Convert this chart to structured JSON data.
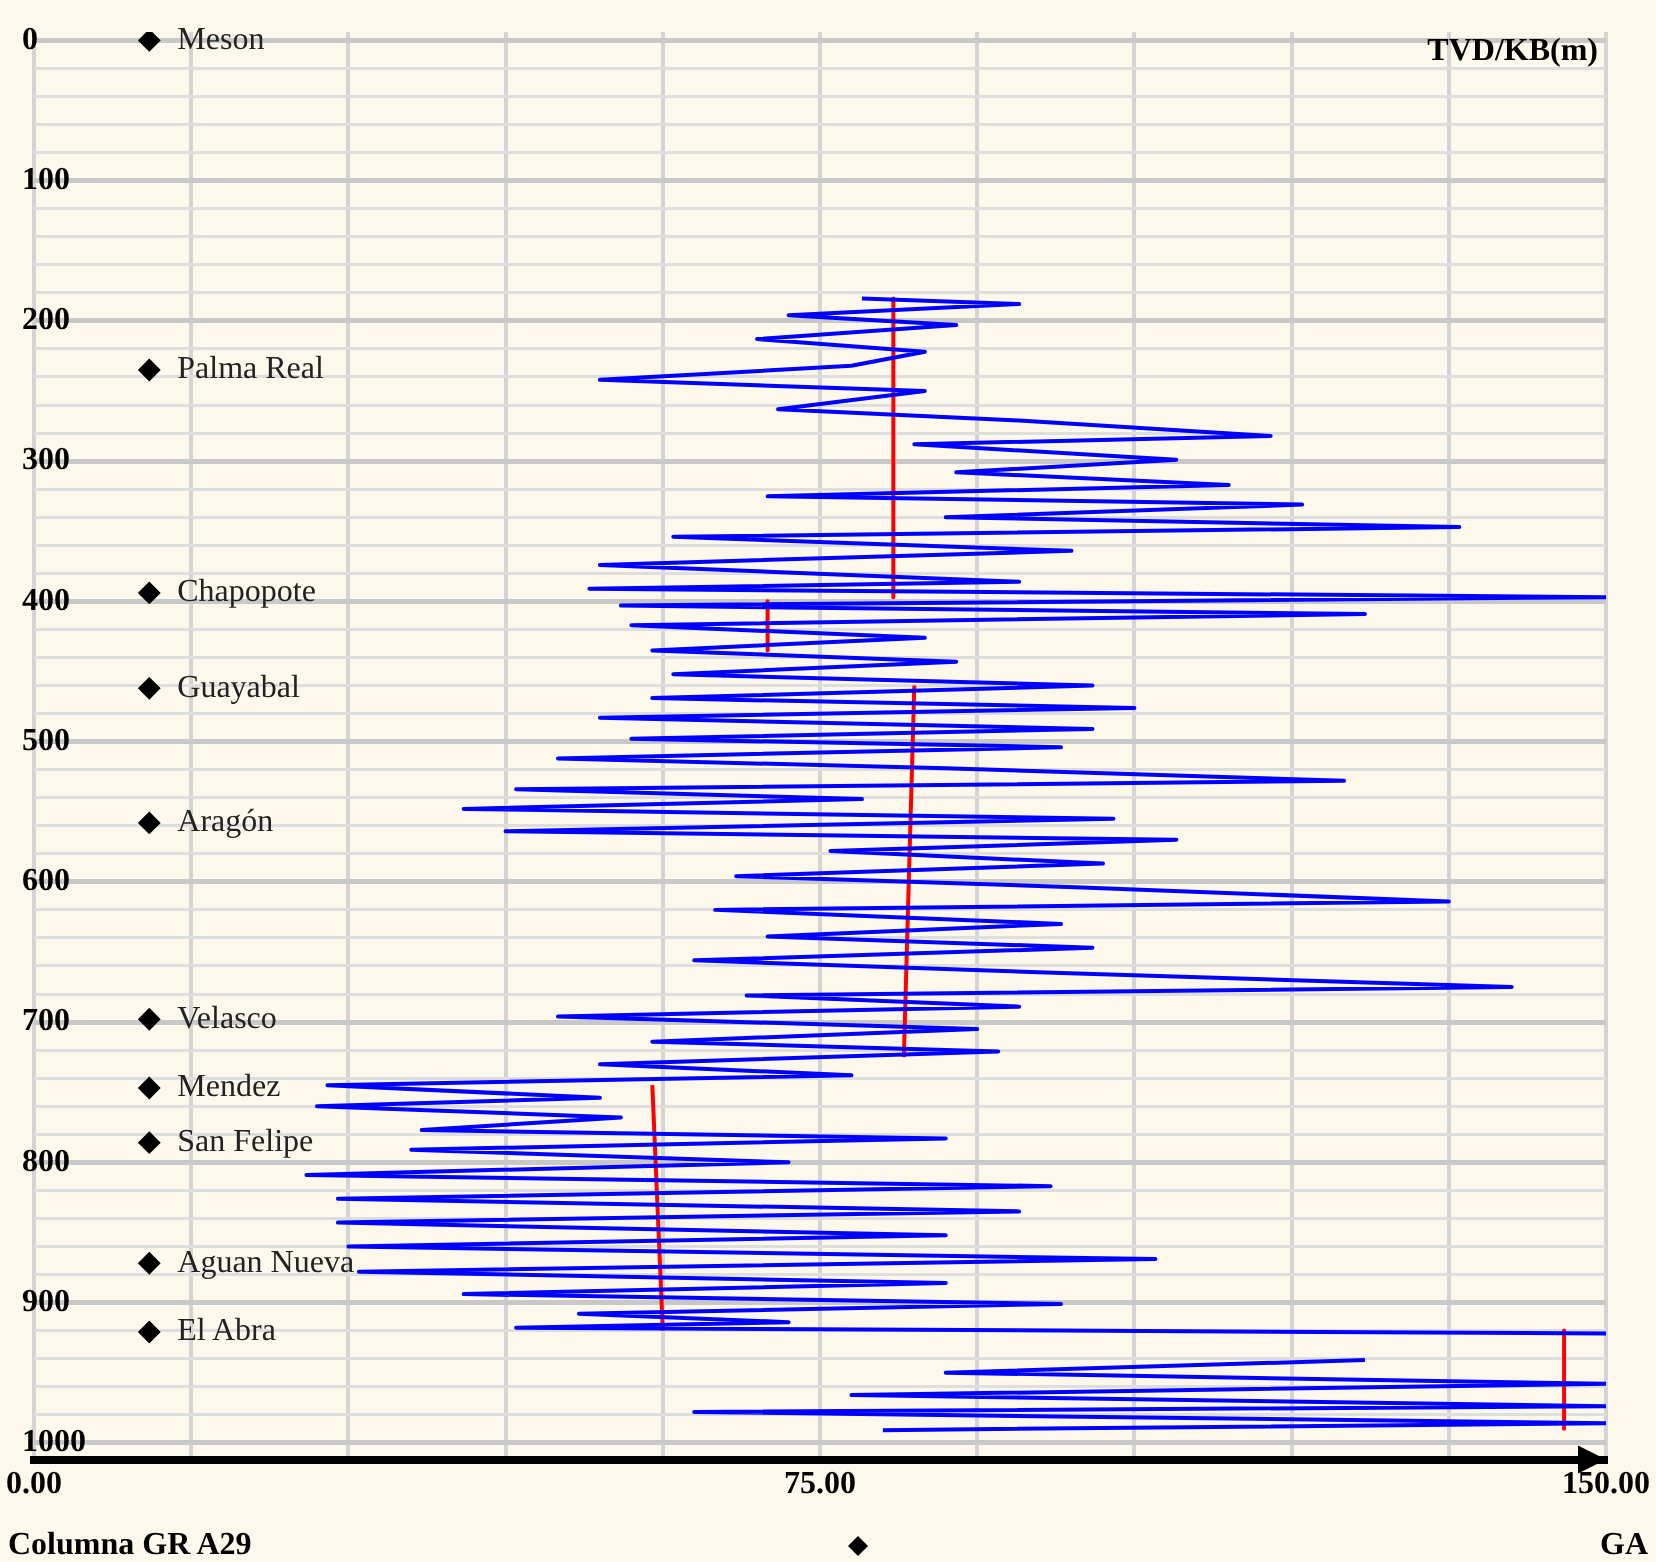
{
  "chart_data": {
    "type": "line",
    "xlabel": "Columna GR A29",
    "ylabel": "TVD/KB(m)",
    "annotations": [
      "GA"
    ],
    "xlim": [
      0,
      150
    ],
    "xticks": [
      {
        "value": 0,
        "label": "0.00"
      },
      {
        "value": 15,
        "label": null
      },
      {
        "value": 30,
        "label": null
      },
      {
        "value": 45,
        "label": null
      },
      {
        "value": 60,
        "label": null
      },
      {
        "value": 75,
        "label": "75.00"
      },
      {
        "value": 90,
        "label": null
      },
      {
        "value": 105,
        "label": null
      },
      {
        "value": 120,
        "label": null
      },
      {
        "value": 135,
        "label": null
      },
      {
        "value": 150,
        "label": "150.00"
      }
    ],
    "ylim": [
      1012,
      -6
    ],
    "yticks": [
      0,
      {
        "value": 20,
        "label": null
      },
      {
        "value": 40,
        "label": null
      },
      {
        "value": 60,
        "label": null
      },
      {
        "value": 80,
        "label": null
      },
      100,
      {
        "value": 120,
        "label": null
      },
      {
        "value": 140,
        "label": null
      },
      {
        "value": 160,
        "label": null
      },
      {
        "value": 180,
        "label": null
      },
      200,
      {
        "value": 220,
        "label": null
      },
      {
        "value": 240,
        "label": null
      },
      {
        "value": 260,
        "label": null
      },
      {
        "value": 280,
        "label": null
      },
      300,
      {
        "value": 320,
        "label": null
      },
      {
        "value": 340,
        "label": null
      },
      {
        "value": 360,
        "label": null
      },
      {
        "value": 380,
        "label": null
      },
      400,
      {
        "value": 420,
        "label": null
      },
      {
        "value": 440,
        "label": null
      },
      {
        "value": 460,
        "label": null
      },
      {
        "value": 480,
        "label": null
      },
      500,
      {
        "value": 520,
        "label": null
      },
      {
        "value": 540,
        "label": null
      },
      {
        "value": 560,
        "label": null
      },
      {
        "value": 580,
        "label": null
      },
      600,
      {
        "value": 620,
        "label": null
      },
      {
        "value": 640,
        "label": null
      },
      {
        "value": 660,
        "label": null
      },
      {
        "value": 680,
        "label": null
      },
      700,
      {
        "value": 720,
        "label": null
      },
      {
        "value": 740,
        "label": null
      },
      {
        "value": 760,
        "label": null
      },
      {
        "value": 780,
        "label": null
      },
      800,
      {
        "value": 820,
        "label": null
      },
      {
        "value": 840,
        "label": null
      },
      {
        "value": 860,
        "label": null
      },
      {
        "value": 880,
        "label": null
      },
      900,
      {
        "value": 920,
        "label": null
      },
      {
        "value": 940,
        "label": null
      },
      {
        "value": 960,
        "label": null
      },
      {
        "value": 980,
        "label": null
      },
      1000
    ],
    "grid": true,
    "legend": false,
    "series": [
      {
        "type": "line",
        "color": "#0000ff",
        "marker": "none",
        "x": [
          79,
          94,
          72,
          88,
          69,
          85,
          78,
          54,
          85,
          71,
          94,
          118,
          84,
          109,
          88,
          114,
          70,
          121,
          87,
          136,
          61,
          99,
          54,
          94,
          53,
          150,
          56,
          127,
          57,
          85,
          59,
          88,
          61,
          101,
          59,
          105,
          54,
          101,
          57,
          98,
          50,
          87,
          125,
          46,
          79,
          41,
          103,
          45,
          109,
          76,
          102,
          67,
          100,
          135,
          65,
          98,
          70,
          101,
          63,
          98,
          141,
          68,
          94,
          50,
          90,
          59,
          92,
          54,
          78,
          28,
          54,
          27,
          56,
          37,
          87,
          36,
          72,
          26,
          97,
          29,
          94,
          29,
          87,
          30,
          107,
          31,
          87,
          41,
          98,
          52,
          72,
          46,
          150,
          null,
          127,
          87,
          150,
          78,
          150,
          63,
          150,
          81
        ],
        "values": [
          184,
          188,
          196,
          203,
          213,
          222,
          232,
          242,
          250,
          263,
          271,
          282,
          288,
          299,
          308,
          317,
          325,
          331,
          340,
          347,
          354,
          364,
          374,
          386,
          391,
          397,
          403,
          409,
          417,
          426,
          435,
          443,
          452,
          460,
          469,
          476,
          483,
          491,
          498,
          504,
          512,
          519,
          528,
          534,
          541,
          548,
          555,
          564,
          570,
          578,
          587,
          596,
          604,
          614,
          620,
          630,
          639,
          647,
          656,
          665,
          675,
          681,
          689,
          696,
          705,
          714,
          721,
          730,
          738,
          745,
          754,
          760,
          768,
          777,
          783,
          791,
          800,
          809,
          817,
          826,
          835,
          843,
          852,
          860,
          869,
          878,
          886,
          894,
          901,
          908,
          914,
          918,
          922,
          null,
          941,
          950,
          958,
          966,
          974,
          978,
          986,
          991
        ]
      },
      {
        "type": "line",
        "color": "#ff0000",
        "marker": "none",
        "x": [
          82,
          82,
          null,
          70,
          70,
          null,
          84,
          83,
          null,
          59,
          60,
          null,
          146,
          146
        ],
        "values": [
          184,
          397,
          null,
          400,
          435,
          null,
          460,
          725,
          null,
          745,
          920,
          null,
          920,
          990
        ]
      },
      {
        "type": "scatter",
        "color": "#000000",
        "marker": "diamond",
        "x": [
          11,
          11,
          11,
          11,
          11,
          11,
          11,
          11,
          11,
          11
        ],
        "values": [
          0,
          235,
          394,
          462,
          558,
          698,
          747,
          786,
          872,
          921
        ],
        "value_labels": [
          "Meson",
          "Palma Real",
          "Chapopote",
          "Guayabal",
          "Aragón",
          "Velasco",
          "Mendez",
          "San Felipe",
          "Aguan Nueva",
          "El Abra"
        ]
      }
    ]
  }
}
